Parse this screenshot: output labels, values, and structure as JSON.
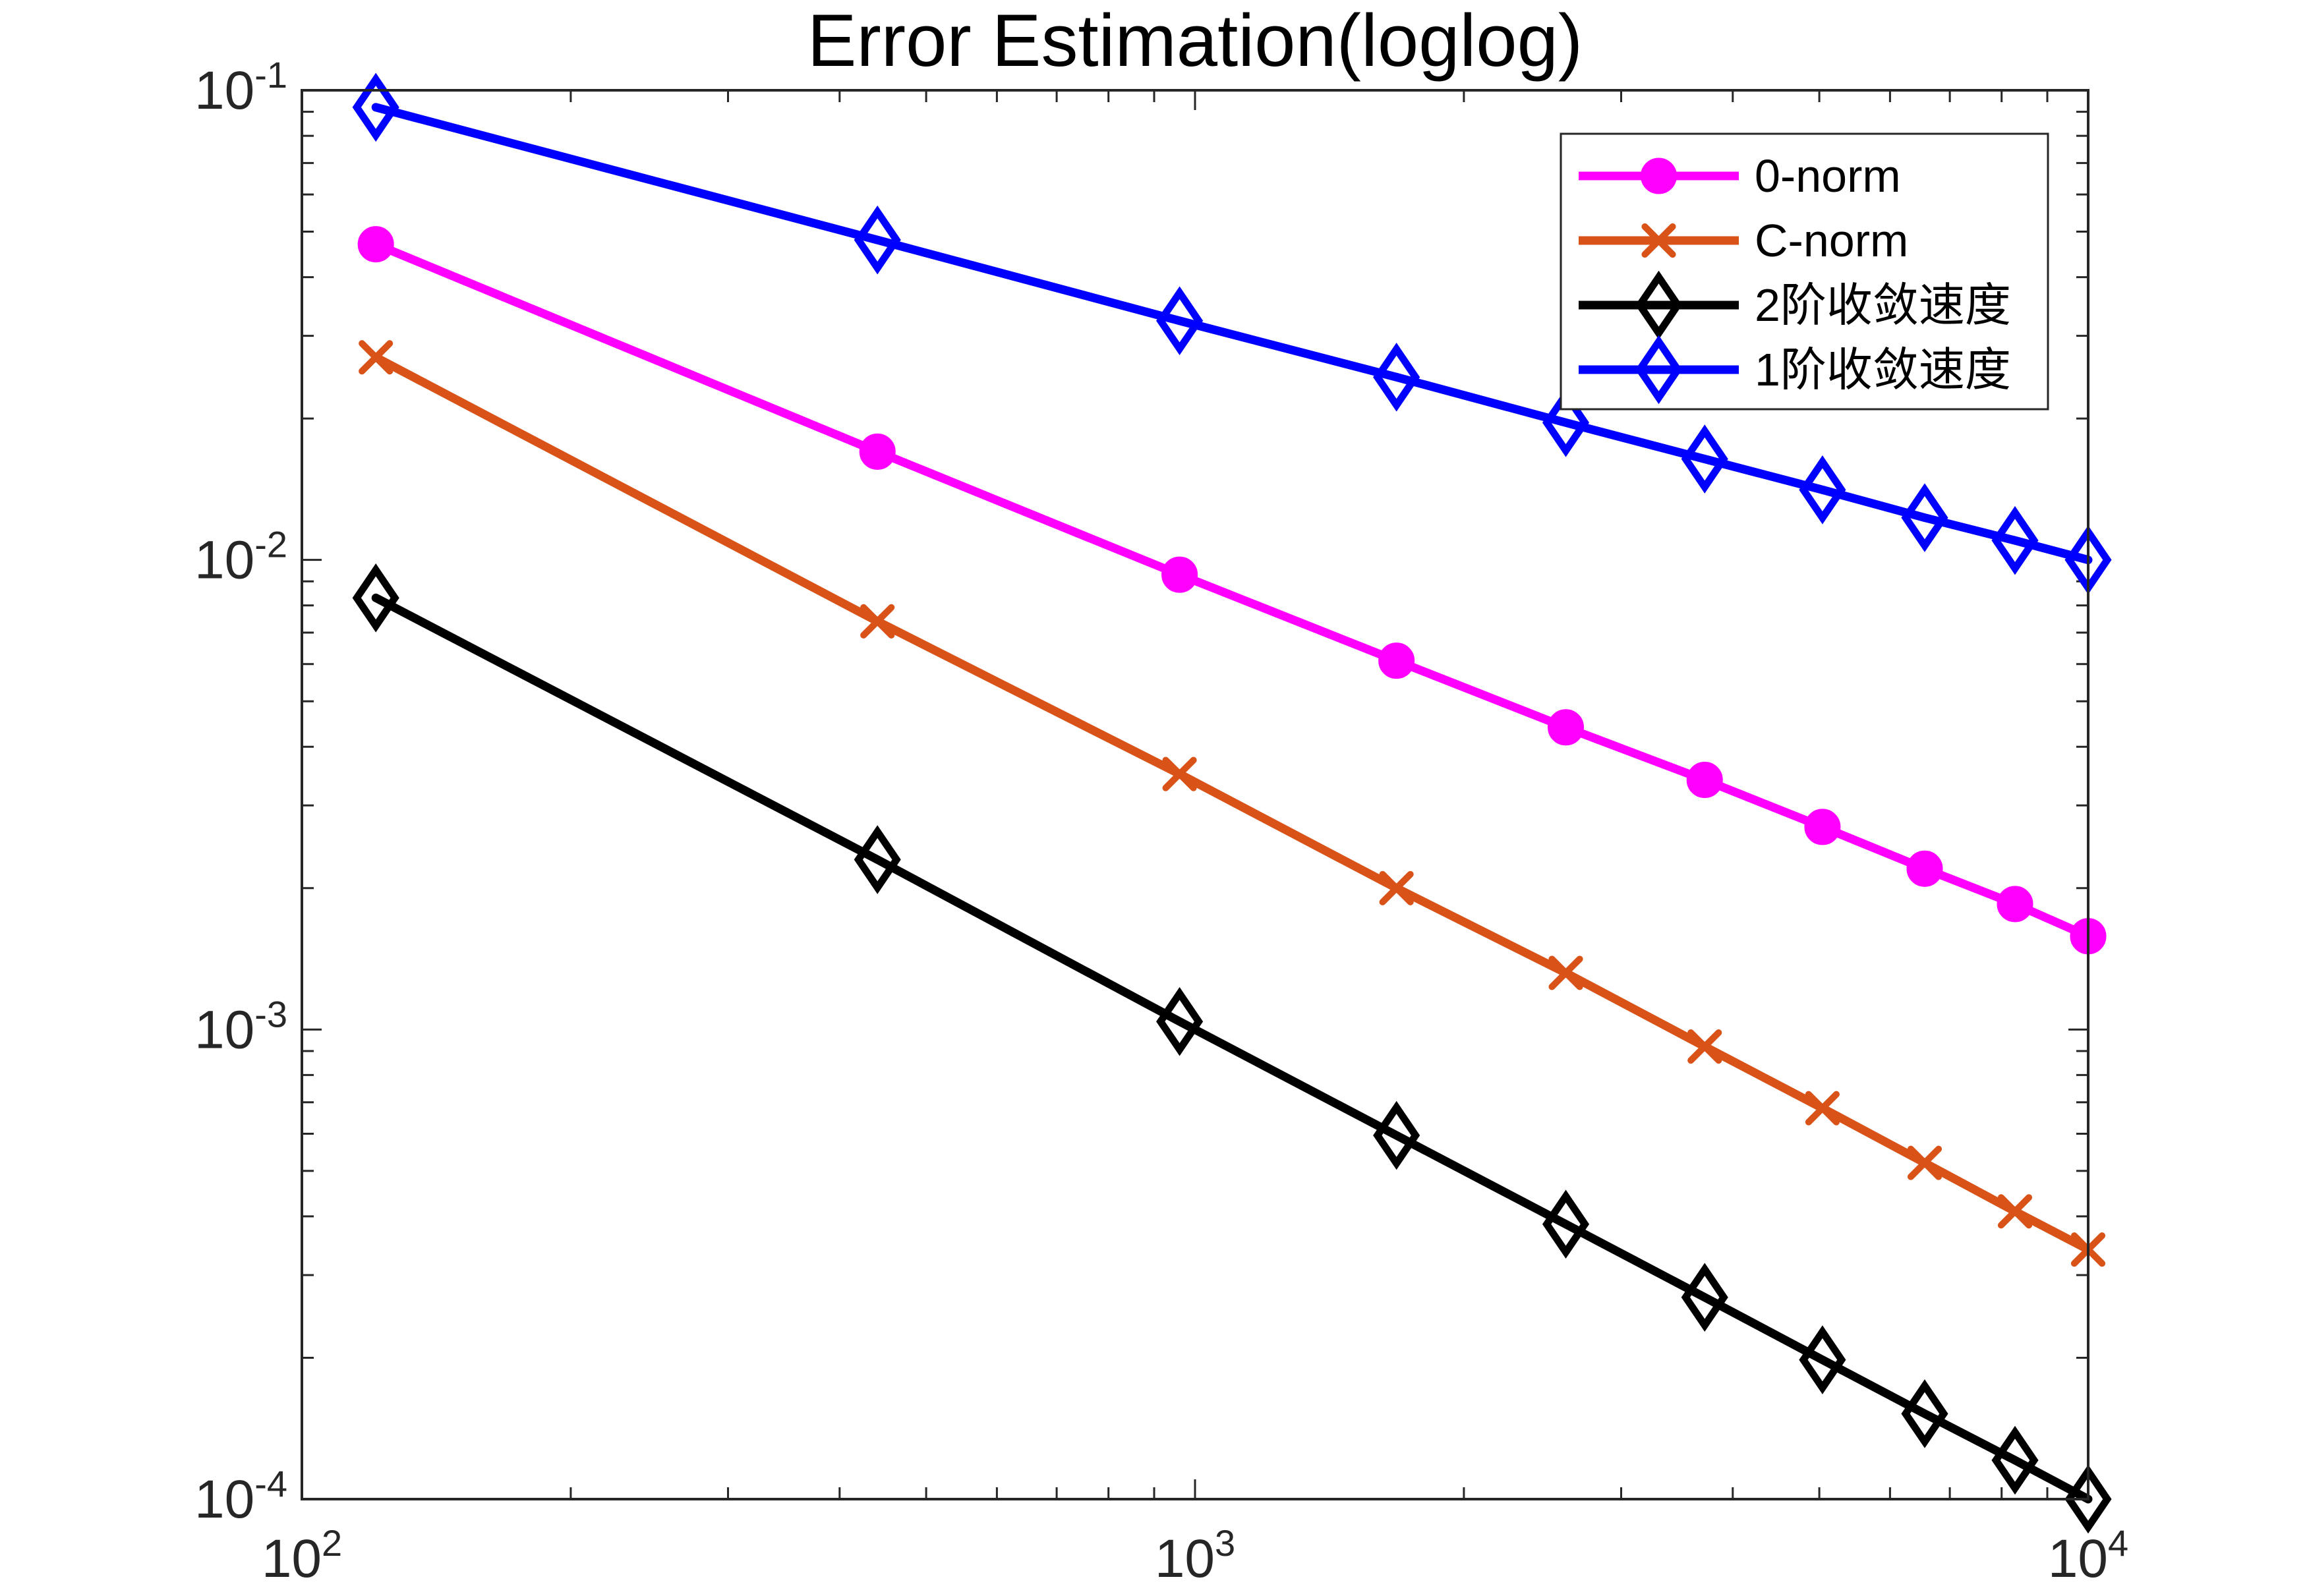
{
  "chart_data": {
    "type": "line",
    "title": "Error Estimation(loglog)",
    "xlabel": "",
    "ylabel": "",
    "xscale": "log",
    "yscale": "log",
    "xlim": [
      100,
      10000
    ],
    "ylim": [
      0.0001,
      0.1
    ],
    "xticks": [
      {
        "value": 100,
        "base": "10",
        "exp": "2"
      },
      {
        "value": 1000,
        "base": "10",
        "exp": "3"
      },
      {
        "value": 10000,
        "base": "10",
        "exp": "4"
      }
    ],
    "yticks": [
      {
        "value": 0.0001,
        "base": "10",
        "exp": "-4"
      },
      {
        "value": 0.001,
        "base": "10",
        "exp": "-3"
      },
      {
        "value": 0.01,
        "base": "10",
        "exp": "-2"
      },
      {
        "value": 0.1,
        "base": "10",
        "exp": "-1"
      }
    ],
    "grid": false,
    "legend_position": "top-right",
    "x": [
      121,
      441,
      961,
      1681,
      2601,
      3721,
      5041,
      6561,
      8281,
      10000
    ],
    "series": [
      {
        "name": "0-norm",
        "color": "#ff00ff",
        "marker": "circle",
        "values": [
          0.047,
          0.017,
          0.0093,
          0.0061,
          0.0044,
          0.0034,
          0.0027,
          0.0022,
          0.00185,
          0.00158
        ]
      },
      {
        "name": "C-norm",
        "color": "#d95319",
        "marker": "x",
        "values": [
          0.027,
          0.0074,
          0.0035,
          0.002,
          0.00132,
          0.00092,
          0.00068,
          0.00052,
          0.00041,
          0.00034
        ]
      },
      {
        "name": "2阶收敛速度",
        "color": "#000000",
        "marker": "diamond",
        "values": [
          0.0083,
          0.0023,
          0.00104,
          0.000595,
          0.000385,
          0.000269,
          0.000198,
          0.000152,
          0.000121,
          0.0001
        ]
      },
      {
        "name": "1阶收敛速度",
        "color": "#0000ff",
        "marker": "diamond",
        "values": [
          0.092,
          0.048,
          0.0323,
          0.0245,
          0.0196,
          0.0164,
          0.0141,
          0.0123,
          0.011,
          0.01
        ]
      }
    ]
  }
}
